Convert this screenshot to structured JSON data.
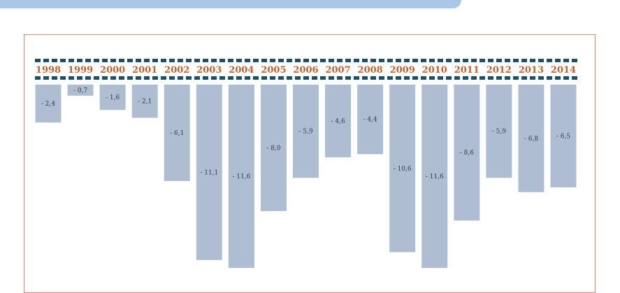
{
  "chart_data": {
    "type": "bar",
    "title": "",
    "xlabel": "",
    "ylabel": "",
    "ylim": [
      -12,
      0
    ],
    "categories": [
      "1998",
      "1999",
      "2000",
      "2001",
      "2002",
      "2003",
      "2004",
      "2005",
      "2006",
      "2007",
      "2008",
      "2009",
      "2010",
      "2011",
      "2012",
      "2013",
      "2014"
    ],
    "values": [
      -2.4,
      -0.7,
      -1.6,
      -2.1,
      -6.1,
      -11.1,
      -11.6,
      -8.0,
      -5.9,
      -4.6,
      -4.4,
      -10.6,
      -11.6,
      -8.6,
      -5.9,
      -6.8,
      -6.5
    ],
    "value_labels": [
      "- 2,4",
      "- 0,7",
      "- 1,6",
      "- 2,1",
      "- 6,1",
      "- 11,1",
      "- 11,6",
      "- 8,0",
      "- 5,9",
      "- 4,6",
      "- 4,4",
      "- 10,6",
      "- 11,6",
      "- 8,6",
      "- 5,9",
      "- 6,8",
      "- 6,5"
    ],
    "colors": {
      "bar": "#afbdd2",
      "year_text": "#c0622a",
      "dash": "#1c4f6a",
      "frame": "#d9886a",
      "band": "#a9c8e6"
    }
  }
}
